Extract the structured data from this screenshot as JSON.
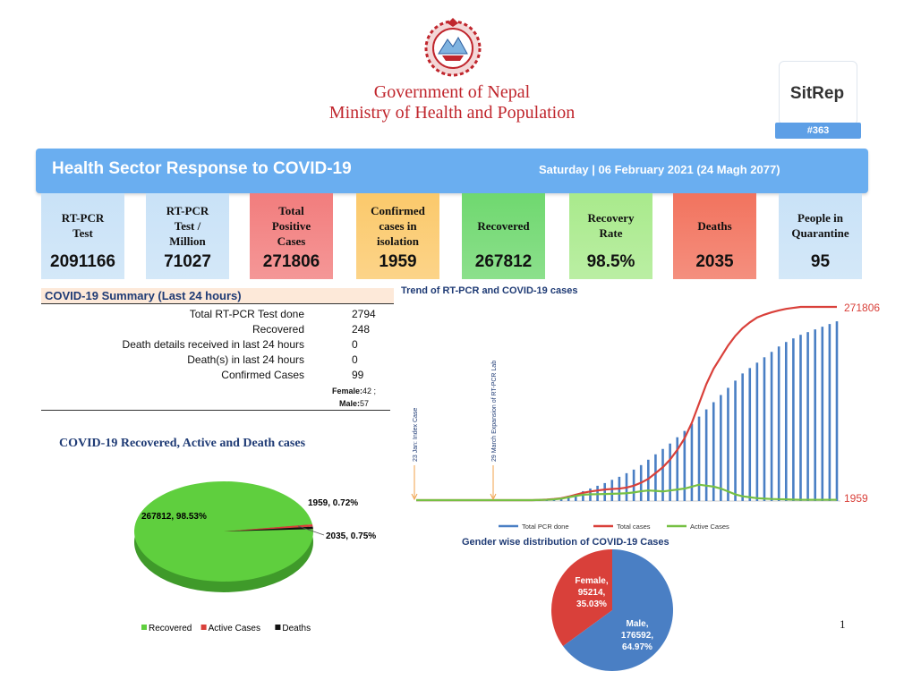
{
  "header": {
    "gov_line1": "Government of Nepal",
    "gov_line2": "Ministry of Health and Population",
    "sitrep_label": "SitRep",
    "sitrep_number": "#363"
  },
  "banner": {
    "title": "Health Sector Response to COVID-19",
    "date": "Saturday | 06 February 2021 (24 Magh 2077)"
  },
  "cards": [
    {
      "label": "RT-PCR\nTest",
      "value": "2091166",
      "color": "#c9e2f7"
    },
    {
      "label": "RT-PCR\nTest /\nMillion",
      "value": "71027",
      "color": "#c9e2f7"
    },
    {
      "label": "Total\nPositive\nCases",
      "value": "271806",
      "color": "#f27d7d"
    },
    {
      "label": "Confirmed\ncases in\nisolation",
      "value": "1959",
      "color": "#fbc96b"
    },
    {
      "label": "Recovered",
      "value": "267812",
      "color": "#6fd86f"
    },
    {
      "label": "Recovery\nRate",
      "value": "98.5%",
      "color": "#a9ea8c"
    },
    {
      "label": "Deaths",
      "value": "2035",
      "color": "#f2735e"
    },
    {
      "label": "People in\nQuarantine",
      "value": "95",
      "color": "#c9e2f7"
    }
  ],
  "summary": {
    "title": "COVID-19 Summary (Last 24 hours)",
    "rows": [
      {
        "label": "Total RT-PCR Test done",
        "value": "2794"
      },
      {
        "label": "Recovered",
        "value": "248"
      },
      {
        "label": "Death details received in last 24 hours",
        "value": "0"
      },
      {
        "label": "Death(s) in last 24 hours",
        "value": "0"
      },
      {
        "label": "Confirmed Cases",
        "value": "99"
      }
    ],
    "female_label": "Female:",
    "female_value": "42 ;",
    "male_label": "Male:",
    "male_value": "57"
  },
  "chart_data": [
    {
      "type": "pie",
      "title": "COVID-19 Recovered, Active and Death cases",
      "labels": [
        "Recovered",
        "Active Cases",
        "Deaths"
      ],
      "values": [
        267812,
        1959,
        2035
      ],
      "percent": [
        98.53,
        0.72,
        0.75
      ],
      "data_labels": [
        "267812, 98.53%",
        "1959, 0.72%",
        "2035, 0.75%"
      ],
      "colors": [
        "#5fcf3e",
        "#d9403a",
        "#111111"
      ],
      "legend": "bottom"
    },
    {
      "type": "bar",
      "title": "Trend of RT-PCR and COVID-19 cases",
      "series": [
        {
          "name": "Total PCR done",
          "kind": "bar",
          "color": "#4a7fc4",
          "values": [
            0,
            0,
            0,
            0,
            0,
            0,
            0,
            0,
            0,
            0,
            0,
            0,
            0,
            0,
            0,
            0,
            0,
            0.003,
            0.006,
            0.012,
            0.02,
            0.03,
            0.04,
            0.055,
            0.07,
            0.085,
            0.1,
            0.118,
            0.135,
            0.155,
            0.175,
            0.2,
            0.23,
            0.26,
            0.29,
            0.32,
            0.355,
            0.39,
            0.43,
            0.47,
            0.51,
            0.55,
            0.59,
            0.63,
            0.67,
            0.71,
            0.74,
            0.77,
            0.8,
            0.83,
            0.86,
            0.885,
            0.905,
            0.925,
            0.94,
            0.955,
            0.97,
            0.985,
            1.0
          ]
        },
        {
          "name": "Total  cases",
          "kind": "line",
          "color": "#d9403a",
          "values": [
            0,
            0,
            0,
            0,
            0,
            0,
            0,
            0,
            0,
            0,
            0,
            0,
            0,
            0,
            0,
            0,
            0,
            0.001,
            0.003,
            0.006,
            0.01,
            0.018,
            0.028,
            0.038,
            0.045,
            0.05,
            0.055,
            0.058,
            0.06,
            0.065,
            0.075,
            0.09,
            0.11,
            0.14,
            0.17,
            0.21,
            0.26,
            0.32,
            0.4,
            0.5,
            0.6,
            0.68,
            0.74,
            0.8,
            0.85,
            0.89,
            0.92,
            0.945,
            0.96,
            0.972,
            0.982,
            0.99,
            0.995,
            1.0,
            1.0,
            1.0,
            1.0,
            1.0,
            1.0
          ],
          "end_label": "271806"
        },
        {
          "name": "Active Cases",
          "kind": "line",
          "color": "#76c043",
          "values": [
            0,
            0,
            0,
            0,
            0,
            0,
            0,
            0,
            0,
            0,
            0,
            0,
            0,
            0,
            0,
            0,
            0,
            0.001,
            0.002,
            0.004,
            0.008,
            0.015,
            0.022,
            0.028,
            0.03,
            0.031,
            0.032,
            0.033,
            0.034,
            0.036,
            0.04,
            0.046,
            0.05,
            0.048,
            0.045,
            0.05,
            0.055,
            0.06,
            0.07,
            0.08,
            0.075,
            0.07,
            0.06,
            0.045,
            0.03,
            0.02,
            0.015,
            0.01,
            0.008,
            0.006,
            0.005,
            0.004,
            0.003,
            0.002,
            0.002,
            0.002,
            0.002,
            0.002,
            0.002
          ],
          "end_label": "1959"
        }
      ],
      "annotations": [
        "23 Jan: Index Case",
        "29 March Expansion of RT-PCR Lab"
      ],
      "legend": "bottom"
    },
    {
      "type": "pie",
      "title": "Gender wise distribution of COVID-19 Cases",
      "labels": [
        "Female",
        "Male"
      ],
      "values": [
        95214,
        176592
      ],
      "percent": [
        35.03,
        64.97
      ],
      "data_labels": [
        [
          "Female,",
          "95214,",
          "35.03%"
        ],
        [
          "Male,",
          "176592,",
          "64.97%"
        ]
      ],
      "colors": [
        "#d9403a",
        "#4a7fc4"
      ]
    }
  ],
  "footer": {
    "page_number": "1"
  }
}
